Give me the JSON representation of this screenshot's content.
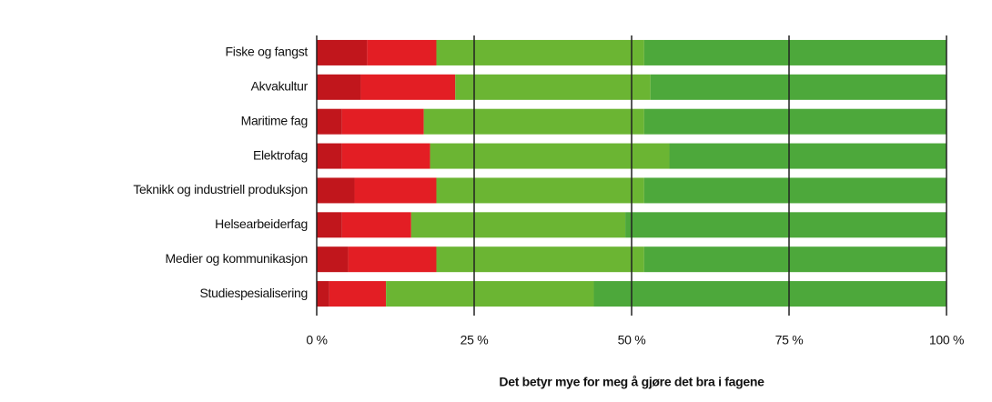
{
  "chart_data": {
    "type": "stacked-barh",
    "xlabel": "Det betyr mye for meg å gjøre det bra i fagene",
    "categories": [
      "Fiske og fangst",
      "Akvakultur",
      "Maritime fag",
      "Elektrofag",
      "Teknikk og industriell produksjon",
      "Helsearbeiderfag",
      "Medier og kommunikasjon",
      "Studiespesialisering"
    ],
    "series": [
      {
        "color": "#c1161c",
        "values": [
          8,
          7,
          4,
          4,
          6,
          4,
          5,
          2
        ]
      },
      {
        "color": "#e31e24",
        "values": [
          11,
          15,
          13,
          14,
          13,
          11,
          14,
          9
        ]
      },
      {
        "color": "#6bb533",
        "values": [
          33,
          31,
          35,
          38,
          33,
          34,
          33,
          33
        ]
      },
      {
        "color": "#4da83b",
        "values": [
          48,
          47,
          48,
          44,
          48,
          51,
          48,
          56
        ]
      }
    ],
    "xlim": [
      0,
      100
    ],
    "xticks": [
      {
        "value": 0,
        "label": "0 %"
      },
      {
        "value": 25,
        "label": "25 %"
      },
      {
        "value": 50,
        "label": "50 %"
      },
      {
        "value": 75,
        "label": "75 %"
      },
      {
        "value": 100,
        "label": "100 %"
      }
    ],
    "grid": true
  }
}
